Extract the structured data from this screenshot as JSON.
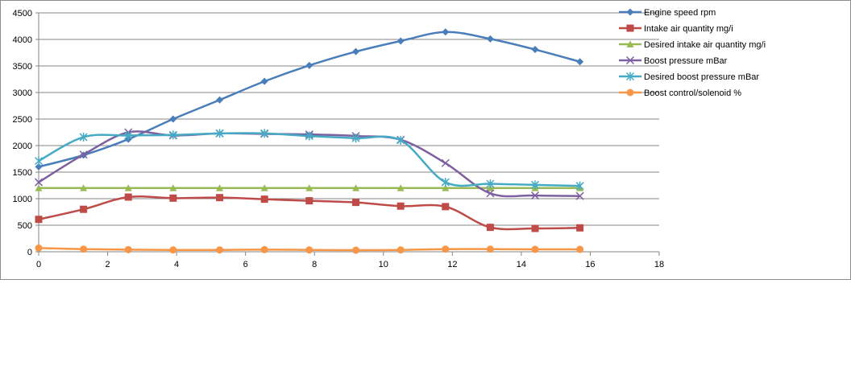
{
  "chart_data": {
    "type": "line",
    "smooth": true,
    "xlim": [
      0,
      18
    ],
    "x_ticks": [
      0,
      2,
      4,
      6,
      8,
      10,
      12,
      14,
      16,
      18
    ],
    "ylim": [
      0,
      4500
    ],
    "y_ticks": [
      0,
      500,
      1000,
      1500,
      2000,
      2500,
      3000,
      3500,
      4000,
      4500
    ],
    "grid": {
      "horizontal": true,
      "vertical": false
    },
    "legend_position": "right",
    "x": [
      0,
      1.3,
      2.6,
      3.9,
      5.25,
      6.55,
      7.85,
      9.2,
      10.5,
      11.8,
      13.1,
      14.4,
      15.7
    ],
    "series": [
      {
        "name": "Engine speed rpm",
        "color": "#4a7ebb",
        "marker": "diamond",
        "values": [
          1600,
          1820,
          2120,
          2500,
          2860,
          3210,
          3510,
          3770,
          3970,
          4140,
          4010,
          3810,
          3580
        ]
      },
      {
        "name": "Intake air quantity mg/i",
        "color": "#be4b48",
        "marker": "square",
        "values": [
          610,
          800,
          1030,
          1010,
          1020,
          990,
          960,
          930,
          860,
          850,
          460,
          440,
          450
        ]
      },
      {
        "name": "Desired intake air quantity mg/i",
        "color": "#98b954",
        "marker": "triangle",
        "values": [
          1200,
          1200,
          1200,
          1200,
          1200,
          1200,
          1200,
          1200,
          1200,
          1200,
          1200,
          1200,
          1200
        ]
      },
      {
        "name": "Boost pressure mBar",
        "color": "#7d60a0",
        "marker": "x",
        "values": [
          1310,
          1830,
          2250,
          2190,
          2230,
          2220,
          2210,
          2180,
          2110,
          1670,
          1100,
          1060,
          1050
        ]
      },
      {
        "name": "Desired boost pressure mBar",
        "color": "#46aac4",
        "marker": "star",
        "values": [
          1710,
          2160,
          2190,
          2200,
          2230,
          2230,
          2180,
          2140,
          2100,
          1310,
          1280,
          1260,
          1240
        ]
      },
      {
        "name": "Boost control/solenoid %",
        "color": "#f79646",
        "marker": "circle",
        "values": [
          70,
          50,
          40,
          35,
          35,
          40,
          35,
          30,
          35,
          50,
          50,
          45,
          45
        ]
      }
    ]
  }
}
